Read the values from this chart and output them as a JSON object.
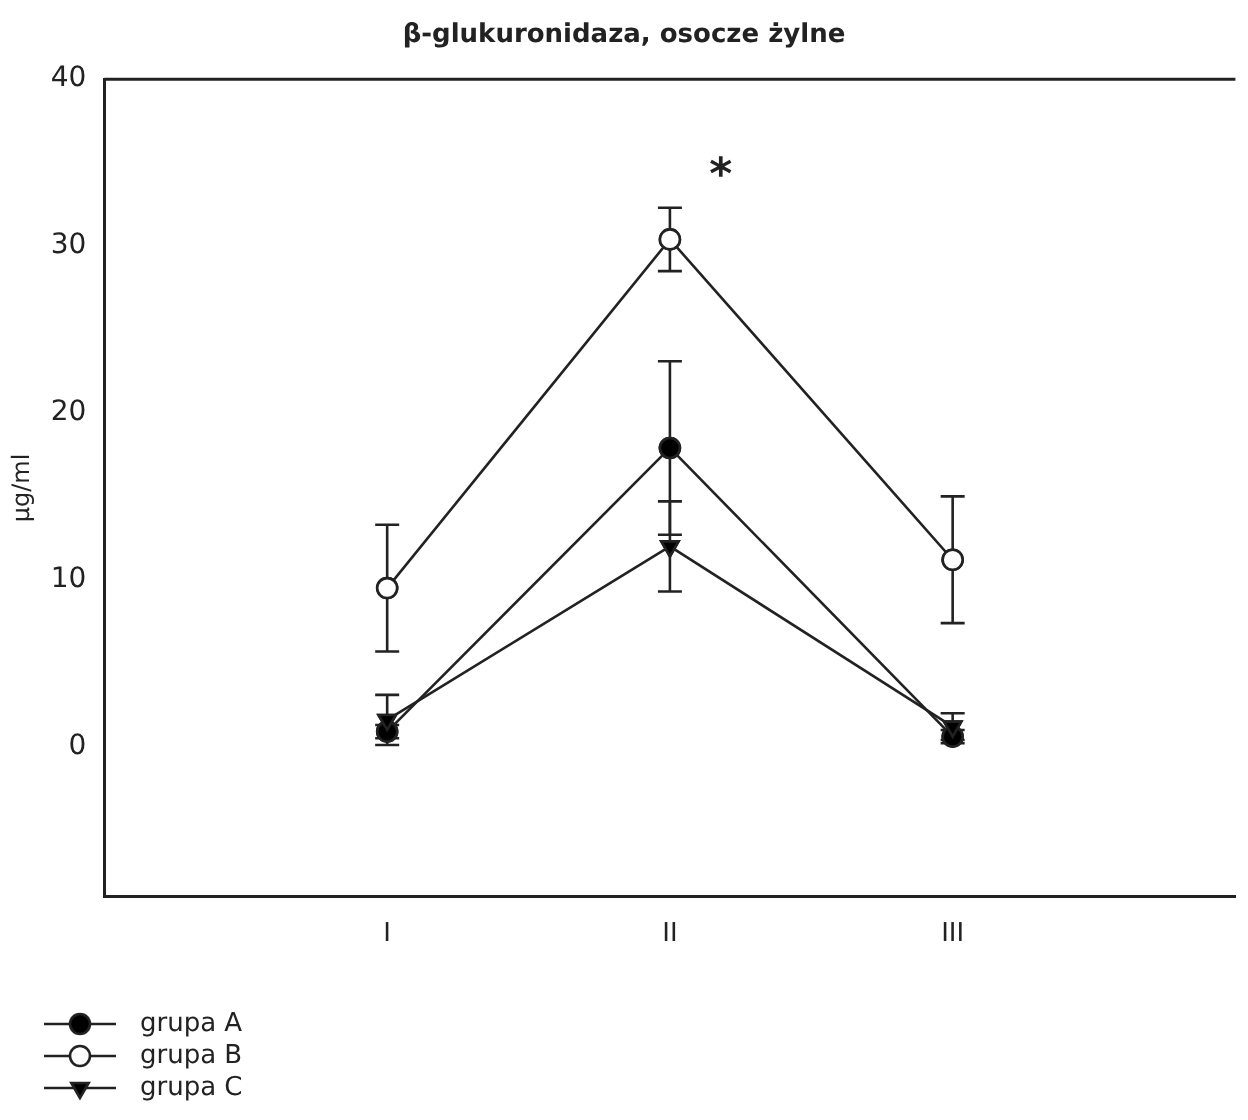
{
  "chart_data": {
    "type": "line",
    "title": "β-glukuronidaza, osocze żylne",
    "ylabel": "µg/ml",
    "categories": [
      "I",
      "II",
      "III"
    ],
    "series": [
      {
        "name": "grupa A",
        "color": "#000000",
        "marker": "circle",
        "values": [
          0.9,
          17.9,
          0.6
        ],
        "errors": [
          0.4,
          5.2,
          0.4
        ]
      },
      {
        "name": "grupa B",
        "color": "#ffffff",
        "marker": "circle",
        "values": [
          9.5,
          30.4,
          11.2
        ],
        "errors": [
          3.8,
          1.9,
          3.8
        ]
      },
      {
        "name": "grupa C",
        "color": "#000000",
        "marker": "triangle",
        "values": [
          1.6,
          12.0,
          1.2
        ],
        "errors": [
          1.5,
          2.7,
          0.8
        ]
      }
    ],
    "ylim": [
      -9,
      40
    ],
    "yticks": [
      0,
      10,
      20,
      30,
      40
    ],
    "grid": false,
    "legend": "bottom left",
    "annotations": [
      "*"
    ]
  }
}
